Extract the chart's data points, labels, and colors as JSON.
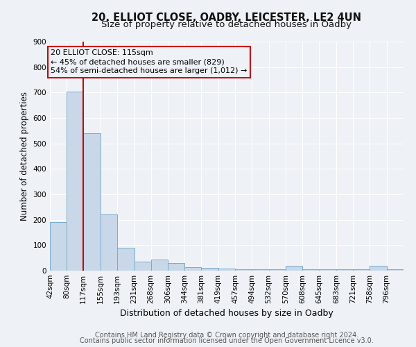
{
  "title1": "20, ELLIOT CLOSE, OADBY, LEICESTER, LE2 4UN",
  "title2": "Size of property relative to detached houses in Oadby",
  "xlabel": "Distribution of detached houses by size in Oadby",
  "ylabel": "Number of detached properties",
  "footer1": "Contains HM Land Registry data © Crown copyright and database right 2024.",
  "footer2": "Contains public sector information licensed under the Open Government Licence v3.0.",
  "annotation_line1": "20 ELLIOT CLOSE: 115sqm",
  "annotation_line2": "← 45% of detached houses are smaller (829)",
  "annotation_line3": "54% of semi-detached houses are larger (1,012) →",
  "bar_edges": [
    42,
    80,
    117,
    155,
    193,
    231,
    268,
    306,
    344,
    381,
    419,
    457,
    494,
    532,
    570,
    608,
    645,
    683,
    721,
    758,
    796
  ],
  "bar_heights": [
    190,
    705,
    540,
    220,
    90,
    35,
    45,
    30,
    15,
    10,
    8,
    5,
    5,
    5,
    18,
    5,
    5,
    5,
    5,
    18,
    5
  ],
  "bar_color": "#c8d8e8",
  "bar_edge_color": "#7aabcc",
  "red_line_x": 117,
  "ylim": [
    0,
    900
  ],
  "yticks": [
    0,
    100,
    200,
    300,
    400,
    500,
    600,
    700,
    800,
    900
  ],
  "bg_color": "#eef2f7",
  "grid_color": "#ffffff",
  "annotation_box_color": "#cc0000",
  "title1_fontsize": 10.5,
  "title2_fontsize": 9.5,
  "xlabel_fontsize": 9,
  "ylabel_fontsize": 8.5,
  "tick_fontsize": 7.5,
  "footer_fontsize": 7,
  "ann_fontsize": 8
}
